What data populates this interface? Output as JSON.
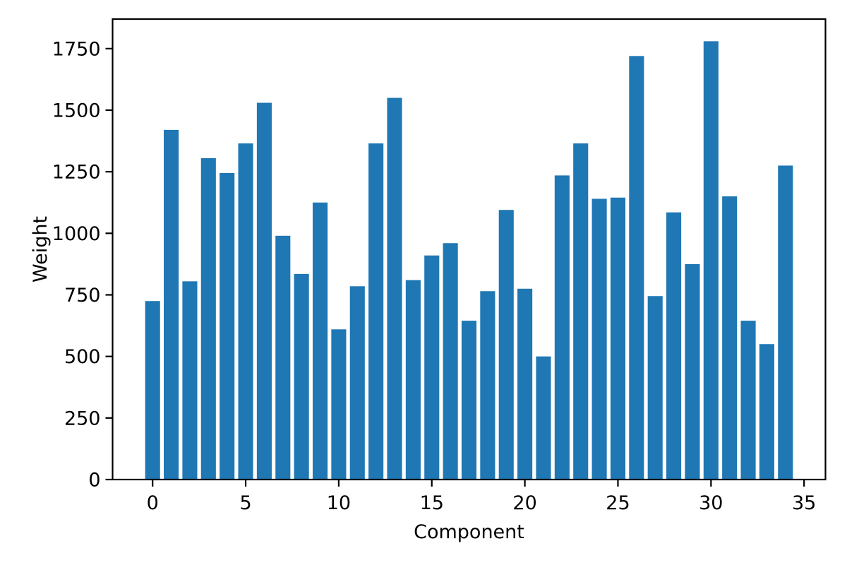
{
  "chart_data": {
    "type": "bar",
    "title": "",
    "xlabel": "Component",
    "ylabel": "Weight",
    "categories": [
      0,
      1,
      2,
      3,
      4,
      5,
      6,
      7,
      8,
      9,
      10,
      11,
      12,
      13,
      14,
      15,
      16,
      17,
      18,
      19,
      20,
      21,
      22,
      23,
      24,
      25,
      26,
      27,
      28,
      29,
      30,
      31,
      32,
      33,
      34
    ],
    "values": [
      725,
      1420,
      805,
      1305,
      1245,
      1365,
      1530,
      990,
      835,
      1125,
      610,
      785,
      1365,
      1550,
      810,
      910,
      960,
      645,
      765,
      1095,
      775,
      500,
      1235,
      1365,
      1140,
      1145,
      1720,
      745,
      1085,
      875,
      1780,
      1150,
      645,
      550,
      1275
    ],
    "bar_color": "#1f77b4",
    "axis_color": "#000000",
    "bar_width": 0.8,
    "xlim": [
      -2.15,
      36.15
    ],
    "ylim": [
      0,
      1870
    ],
    "x_ticks": [
      0,
      5,
      10,
      15,
      20,
      25,
      30,
      35
    ],
    "y_ticks": [
      0,
      250,
      500,
      750,
      1000,
      1250,
      1500,
      1750
    ],
    "grid": false,
    "legend_position": "none"
  }
}
